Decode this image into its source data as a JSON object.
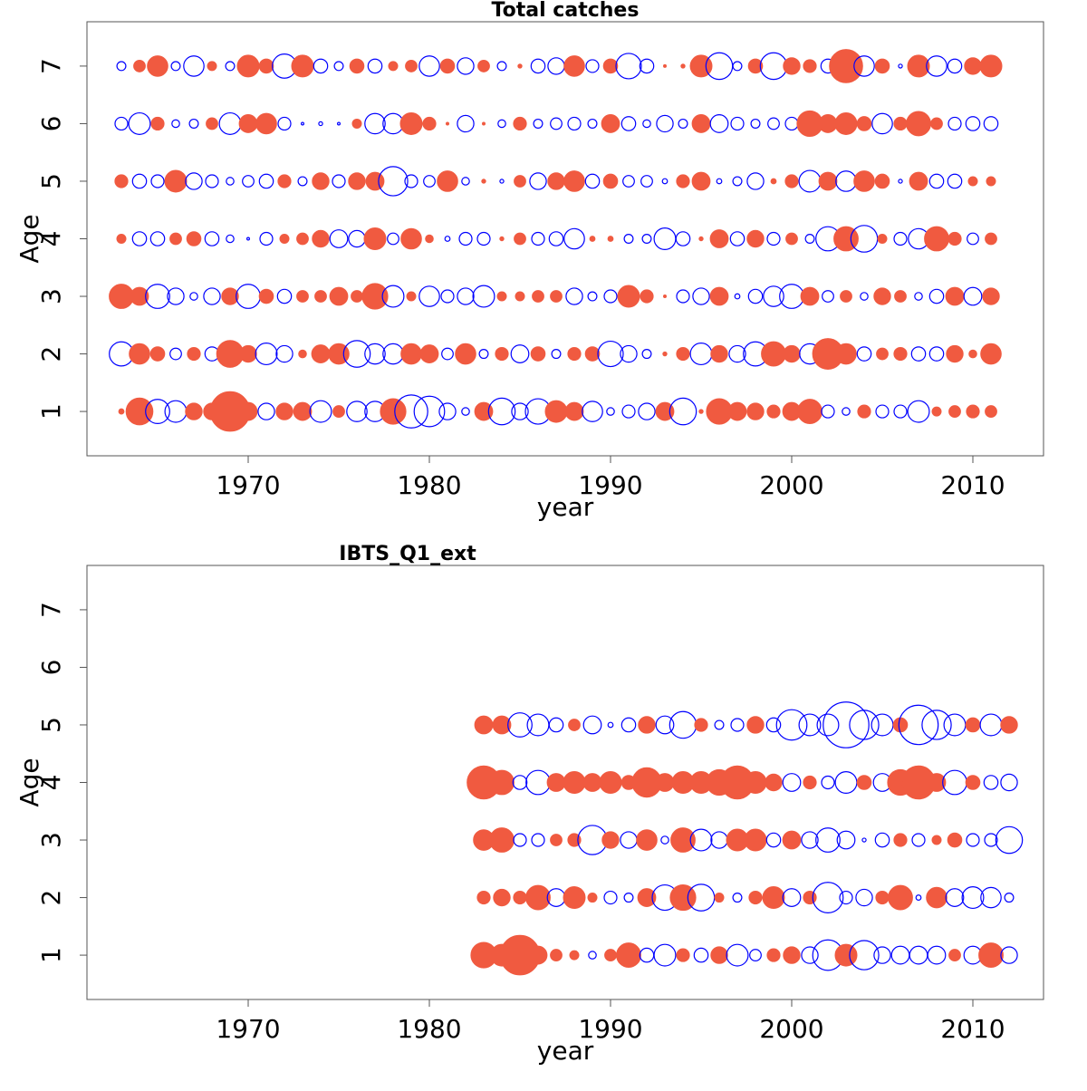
{
  "chart_data": [
    {
      "type": "bubble",
      "title": "Total catches",
      "xlabel": "year",
      "ylabel": "Age",
      "xlim": [
        1961.1,
        2013.9
      ],
      "ylim": [
        0.23,
        7.77
      ],
      "xticks": [
        1970,
        1980,
        1990,
        2000,
        2010
      ],
      "yticks": [
        1,
        2,
        3,
        4,
        5,
        6,
        7
      ],
      "colors": {
        "positive": "#0000ff",
        "negative": "#f05a40"
      },
      "years": [
        1963,
        1964,
        1965,
        1966,
        1967,
        1968,
        1969,
        1970,
        1971,
        1972,
        1973,
        1974,
        1975,
        1976,
        1977,
        1978,
        1979,
        1980,
        1981,
        1982,
        1983,
        1984,
        1985,
        1986,
        1987,
        1988,
        1989,
        1990,
        1991,
        1992,
        1993,
        1994,
        1995,
        1996,
        1997,
        1998,
        1999,
        2000,
        2001,
        2002,
        2003,
        2004,
        2005,
        2006,
        2007,
        2008,
        2009,
        2010,
        2011
      ],
      "ages": [
        1,
        2,
        3,
        4,
        5,
        6,
        7
      ],
      "residuals": [
        [
          -0.4,
          -2.1,
          1.9,
          1.7,
          -1.3,
          -1.3,
          -3.1,
          -1.4,
          1.3,
          -1.3,
          -1.4,
          1.7,
          -0.9,
          1.6,
          1.6,
          -2.0,
          2.6,
          2.4,
          1.3,
          0.6,
          -1.4,
          2.1,
          1.3,
          2.0,
          -1.7,
          -1.4,
          1.6,
          0.6,
          1.0,
          1.3,
          -1.4,
          2.1,
          -0.3,
          -2.0,
          -1.4,
          -1.3,
          -1.0,
          -1.4,
          -1.9,
          1.0,
          0.6,
          -1.0,
          1.0,
          1.0,
          1.7,
          -0.7,
          -0.9,
          -1.0,
          -0.9
        ],
        [
          1.9,
          -1.6,
          -1.1,
          0.9,
          -1.0,
          1.1,
          -2.1,
          -1.3,
          1.7,
          1.3,
          -0.6,
          -1.4,
          -1.6,
          2.1,
          1.6,
          1.6,
          -1.6,
          -1.4,
          0.9,
          -1.6,
          0.7,
          -1.0,
          1.4,
          -1.1,
          0.7,
          -1.0,
          -1.1,
          2.0,
          1.3,
          0.7,
          -0.3,
          -1.0,
          1.7,
          -1.3,
          1.3,
          1.9,
          -1.9,
          -1.3,
          1.6,
          -2.4,
          -1.6,
          1.1,
          -0.9,
          -1.0,
          1.1,
          1.1,
          -1.3,
          -0.6,
          -1.6
        ],
        [
          -1.9,
          -1.4,
          1.9,
          1.3,
          0.6,
          1.3,
          -1.3,
          1.9,
          -1.1,
          1.1,
          -0.9,
          -0.9,
          -1.4,
          -0.9,
          -2.0,
          1.7,
          -0.7,
          1.6,
          1.0,
          1.3,
          1.7,
          -0.7,
          -0.7,
          -0.9,
          -0.9,
          1.3,
          0.7,
          1.0,
          -1.7,
          -1.0,
          -0.2,
          1.0,
          1.3,
          -1.4,
          0.4,
          1.1,
          1.6,
          1.9,
          -1.4,
          0.9,
          -0.9,
          0.6,
          -1.3,
          -0.9,
          0.6,
          1.1,
          -1.4,
          1.4,
          -1.3
        ],
        [
          -0.7,
          1.1,
          1.1,
          -0.9,
          -1.1,
          1.1,
          0.6,
          0.2,
          1.0,
          -0.7,
          -0.9,
          -1.3,
          1.4,
          1.3,
          -1.7,
          0.9,
          -1.6,
          -0.6,
          0.4,
          1.0,
          1.0,
          -0.3,
          -0.9,
          1.0,
          1.1,
          1.6,
          -0.4,
          -0.4,
          0.7,
          0.7,
          1.7,
          1.1,
          -0.3,
          -1.4,
          1.1,
          -1.3,
          1.0,
          -0.9,
          0.7,
          1.9,
          -1.9,
          2.1,
          -0.7,
          1.0,
          1.6,
          -1.9,
          -1.0,
          0.9,
          -0.9
        ],
        [
          -1.0,
          1.1,
          1.0,
          -1.7,
          1.3,
          1.0,
          0.6,
          0.9,
          1.1,
          -1.0,
          0.7,
          -1.3,
          1.0,
          -1.3,
          -1.4,
          2.3,
          1.0,
          0.9,
          -1.6,
          0.6,
          -0.3,
          0.3,
          -0.9,
          1.3,
          -1.3,
          -1.6,
          1.1,
          -1.1,
          0.9,
          0.9,
          0.4,
          -1.0,
          -1.4,
          0.4,
          0.7,
          1.3,
          -0.4,
          -1.0,
          1.7,
          -1.4,
          1.6,
          -1.6,
          -1.1,
          0.3,
          -1.4,
          1.1,
          1.1,
          -0.7,
          -0.7
        ],
        [
          1.0,
          1.7,
          -1.0,
          0.6,
          0.7,
          -0.9,
          1.7,
          -1.4,
          -1.6,
          1.0,
          0.2,
          0.3,
          0.2,
          -0.7,
          1.6,
          1.6,
          -1.7,
          -1.0,
          -0.2,
          1.3,
          -0.2,
          0.6,
          -1.0,
          0.7,
          0.9,
          1.0,
          0.7,
          -1.4,
          1.1,
          0.6,
          1.3,
          0.7,
          -1.4,
          1.4,
          1.0,
          0.7,
          0.9,
          1.0,
          -2.0,
          -1.4,
          -1.7,
          -1.1,
          1.6,
          -1.0,
          -1.9,
          -0.9,
          1.0,
          1.1,
          1.1
        ],
        [
          0.7,
          -0.9,
          -1.6,
          0.7,
          1.6,
          -0.7,
          0.7,
          -1.7,
          -1.1,
          1.9,
          -1.7,
          1.1,
          0.7,
          -1.1,
          1.1,
          -0.7,
          -0.9,
          1.6,
          -1.1,
          1.3,
          -0.9,
          0.7,
          -0.3,
          1.1,
          1.3,
          -1.6,
          1.0,
          -1.1,
          2.0,
          1.1,
          -0.2,
          -0.3,
          -1.7,
          2.1,
          0.7,
          -1.1,
          2.1,
          -1.3,
          -1.0,
          1.1,
          -2.6,
          1.6,
          -1.1,
          0.3,
          -1.7,
          1.6,
          1.1,
          -1.3,
          -1.7
        ]
      ]
    },
    {
      "type": "bubble",
      "title": "IBTS_Q1_ext",
      "xlabel": "year",
      "ylabel": "Age",
      "xlim": [
        1961.1,
        2013.9
      ],
      "ylim": [
        0.23,
        7.77
      ],
      "xticks": [
        1970,
        1980,
        1990,
        2000,
        2010
      ],
      "yticks": [
        1,
        2,
        3,
        4,
        5,
        6,
        7
      ],
      "colors": {
        "positive": "#0000ff",
        "negative": "#f05a40"
      },
      "years": [
        1983,
        1984,
        1985,
        1986,
        1987,
        1988,
        1989,
        1990,
        1991,
        1992,
        1993,
        1994,
        1995,
        1996,
        1997,
        1998,
        1999,
        2000,
        2001,
        2002,
        2003,
        2004,
        2005,
        2006,
        2007,
        2008,
        2009,
        2010,
        2011,
        2012
      ],
      "ages": [
        1,
        2,
        3,
        4,
        5
      ],
      "residuals": [
        [
          -2.0,
          -1.7,
          -3.1,
          -1.4,
          -0.9,
          -0.7,
          0.6,
          -0.9,
          -1.9,
          1.1,
          1.7,
          -1.0,
          1.1,
          -1.3,
          1.7,
          0.9,
          -1.0,
          -1.3,
          1.3,
          2.4,
          -1.7,
          2.3,
          1.3,
          1.4,
          1.4,
          1.4,
          -0.9,
          1.4,
          -1.9,
          1.3
        ],
        [
          -1.0,
          -1.3,
          -1.0,
          -1.9,
          1.4,
          -1.7,
          -0.7,
          1.0,
          0.7,
          -1.4,
          2.0,
          -2.0,
          2.1,
          -0.7,
          0.7,
          -1.0,
          -1.7,
          1.4,
          -1.0,
          2.4,
          1.0,
          1.3,
          -1.0,
          -1.9,
          0.4,
          -1.6,
          1.4,
          1.7,
          1.6,
          0.7
        ],
        [
          -1.6,
          -1.9,
          1.0,
          1.0,
          -0.9,
          -1.0,
          2.3,
          -1.3,
          1.3,
          -1.6,
          0.6,
          -1.9,
          1.7,
          1.3,
          -1.7,
          -1.7,
          1.1,
          -1.4,
          1.3,
          1.9,
          1.4,
          0.3,
          1.1,
          -1.0,
          1.0,
          -0.7,
          -1.1,
          1.0,
          1.0,
          2.1
        ],
        [
          -2.6,
          -1.9,
          1.1,
          1.9,
          -1.4,
          -1.7,
          -1.4,
          -1.7,
          -1.1,
          -2.3,
          -1.4,
          -1.7,
          -1.7,
          -2.0,
          -2.6,
          -1.7,
          -1.3,
          1.4,
          -1.0,
          1.0,
          1.7,
          -1.1,
          1.4,
          -2.0,
          -2.6,
          -1.4,
          1.9,
          -1.1,
          1.1,
          1.3
        ],
        [
          -1.4,
          -1.4,
          1.9,
          1.7,
          1.1,
          -0.9,
          1.4,
          0.4,
          1.1,
          -1.3,
          1.4,
          2.1,
          -1.0,
          0.7,
          1.0,
          -1.3,
          1.1,
          2.4,
          1.7,
          1.7,
          3.6,
          2.3,
          1.7,
          -1.1,
          3.1,
          2.3,
          1.7,
          -1.1,
          1.7,
          -1.3
        ]
      ]
    }
  ]
}
